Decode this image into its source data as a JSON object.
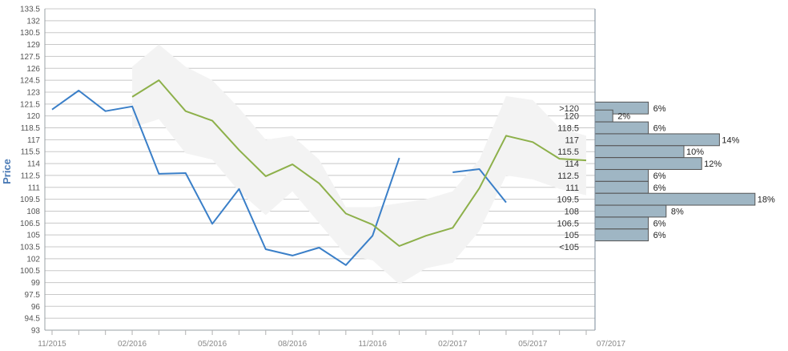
{
  "chart_data": {
    "type": "line",
    "ylabel": "Price",
    "ylim": [
      93,
      133.5
    ],
    "yticks": [
      "133.5",
      "132",
      "130.5",
      "129",
      "127.5",
      "126",
      "124.5",
      "123",
      "121.5",
      "120",
      "118.5",
      "117",
      "115.5",
      "114",
      "112.5",
      "111",
      "109.5",
      "108",
      "106.5",
      "105",
      "103.5",
      "102",
      "100.5",
      "99",
      "97.5",
      "96",
      "94.5",
      "93"
    ],
    "xtick_labels": [
      "11/2015",
      "02/2016",
      "05/2016",
      "08/2016",
      "11/2016",
      "02/2017",
      "05/2017",
      "07/2017"
    ],
    "x": [
      "2015-11",
      "2015-12",
      "2016-01",
      "2016-02",
      "2016-03",
      "2016-04",
      "2016-05",
      "2016-06",
      "2016-07",
      "2016-08",
      "2016-09",
      "2016-10",
      "2016-11",
      "2016-12",
      "2017-01",
      "2017-02",
      "2017-03",
      "2017-04",
      "2017-05",
      "2017-06",
      "2017-07"
    ],
    "series": [
      {
        "color": "#3a7fc8",
        "values": [
          120.8,
          123.2,
          120.6,
          121.2,
          112.7,
          112.8,
          106.4,
          110.8,
          103.2,
          102.4,
          103.4,
          101.2,
          104.9,
          114.7,
          null,
          112.9,
          113.3,
          109.1,
          null,
          null,
          null
        ]
      },
      {
        "color": "#8db04a",
        "values": [
          null,
          null,
          null,
          122.4,
          124.5,
          120.6,
          119.4,
          115.7,
          112.4,
          113.9,
          111.5,
          107.7,
          106.3,
          103.6,
          104.9,
          105.9,
          110.9,
          117.5,
          116.7,
          114.6,
          114.4
        ]
      },
      {
        "name": "range",
        "color": "#f3f3f3",
        "upper": [
          null,
          null,
          null,
          126.2,
          129.0,
          126.2,
          124.5,
          121.0,
          117.0,
          117.5,
          114.5,
          108.5,
          108.5,
          109.0,
          109.5,
          110.5,
          114.5,
          122.5,
          122.0,
          118.5,
          117.5
        ],
        "lower": [
          null,
          null,
          null,
          118.5,
          119.6,
          115.3,
          114.5,
          110.5,
          107.5,
          110.5,
          106.5,
          102.5,
          101.8,
          98.8,
          100.8,
          101.5,
          105.5,
          112.5,
          112.0,
          110.8,
          110.0
        ]
      }
    ],
    "distribution": {
      "bins": [
        ">120",
        "120",
        "118.5",
        "117",
        "115.5",
        "114",
        "112.5",
        "111",
        "109.5",
        "108",
        "106.5",
        "105",
        "<105"
      ],
      "bin_values": [
        121,
        120,
        118.5,
        117,
        115.5,
        114,
        112.5,
        111,
        109.5,
        108,
        106.5,
        105,
        103.5
      ],
      "percents": [
        6,
        2,
        6,
        14,
        10,
        12,
        6,
        6,
        18,
        8,
        6,
        6,
        null
      ],
      "percent_labels": [
        "6%",
        "2%",
        "6%",
        "14%",
        "10%",
        "12%",
        "6%",
        "6%",
        "18%",
        "8%",
        "6%",
        "6%",
        ""
      ],
      "bar_color": "#9fb6c4"
    },
    "grid": true
  }
}
